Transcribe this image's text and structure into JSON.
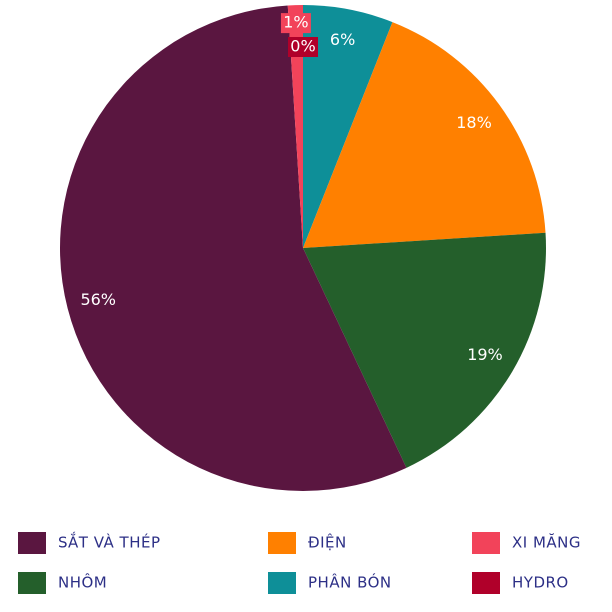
{
  "chart_data": {
    "type": "pie",
    "categories": [
      "PHÂN BÓN",
      "ĐIỆN",
      "NHÔM",
      "SẮT VÀ THÉP",
      "XI MĂNG",
      "HYDRO"
    ],
    "values": [
      6,
      18,
      19,
      56,
      1,
      0
    ],
    "value_labels": [
      "6%",
      "18%",
      "19%",
      "56%",
      "1%",
      "0%"
    ],
    "colors": [
      "#0e8f98",
      "#ff8000",
      "#245f2b",
      "#5a1640",
      "#f2435a",
      "#b0002a"
    ]
  }
}
